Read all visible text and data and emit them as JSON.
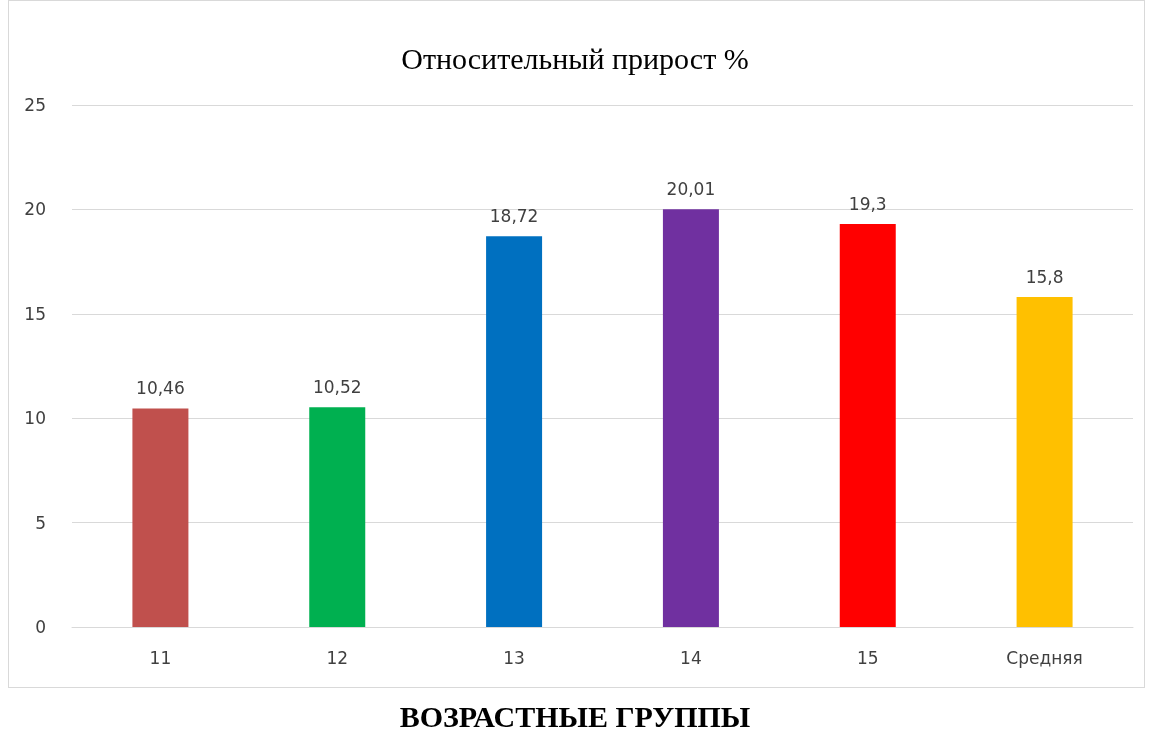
{
  "chart_data": {
    "type": "bar",
    "title": "Относительный прирост %",
    "xlabel": "ВОЗРАСТНЫЕ ГРУППЫ",
    "categories": [
      "11",
      "12",
      "13",
      "14",
      "15",
      "Средняя"
    ],
    "values": [
      10.46,
      10.52,
      18.72,
      20.01,
      19.3,
      15.8
    ],
    "value_labels": [
      "10,46",
      "10,52",
      "18,72",
      "20,01",
      "19,3",
      "15,8"
    ],
    "colors": [
      "#c0504d",
      "#00b050",
      "#0070c0",
      "#7030a0",
      "#ff0000",
      "#ffc000"
    ],
    "ylim": [
      0,
      25
    ],
    "yticks": [
      0,
      5,
      10,
      15,
      20,
      25
    ],
    "grid": "y"
  }
}
